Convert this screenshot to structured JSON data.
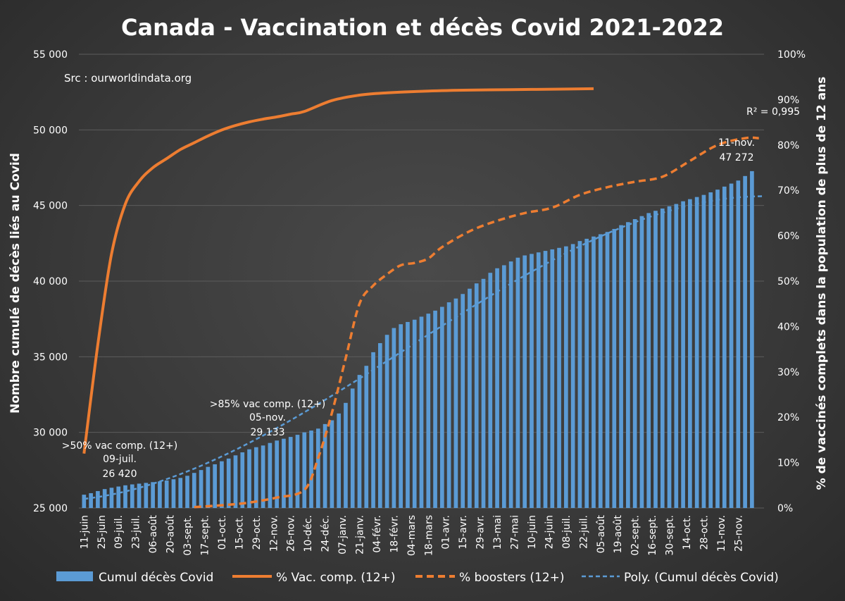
{
  "chart_data": {
    "type": "bar",
    "title": "Canada - Vaccination et décès Covid 2021-2022",
    "source": "Src : ourworldindata.org",
    "ylabel_left": "Nombre cumulé de décès liés au Covid",
    "ylabel_right": "% de vaccinés complets dans  la population de plus de 12 ans",
    "ylim_left": [
      25000,
      55000
    ],
    "ylim_right": [
      0,
      100
    ],
    "yticks_left": [
      "25 000",
      "30 000",
      "35 000",
      "40 000",
      "45 000",
      "50 000",
      "55 000"
    ],
    "yticks_right": [
      "0%",
      "10%",
      "20%",
      "30%",
      "40%",
      "50%",
      "60%",
      "70%",
      "80%",
      "90%",
      "100%"
    ],
    "x_labels": [
      "11-juin",
      "25-juin",
      "09-juil.",
      "23-juil.",
      "06-août",
      "20-août",
      "03-sept.",
      "17-sept.",
      "01-oct.",
      "15-oct.",
      "29-oct.",
      "12-nov.",
      "26-nov.",
      "10-déc.",
      "24-déc.",
      "07-janv.",
      "21-janv.",
      "04-févr.",
      "18-févr.",
      "04-mars",
      "18-mars",
      "01-avr.",
      "15-avr.",
      "29-avr.",
      "13-mai",
      "27-mai",
      "10-juin",
      "24-juin",
      "08-juil.",
      "22-juil.",
      "05-août",
      "19-août",
      "02-sept.",
      "16-sept.",
      "30-sept.",
      "14-oct.",
      "28-oct.",
      "11-nov.",
      "25-nov."
    ],
    "grid": true,
    "legend_position": "bottom",
    "series": [
      {
        "name": "Cumul décès Covid",
        "type": "bar",
        "axis": "left",
        "color": "#5b9bd5",
        "values": [
          25880,
          25980,
          26120,
          26250,
          26340,
          26420,
          26500,
          26560,
          26610,
          26660,
          26710,
          26760,
          26820,
          26900,
          26990,
          27130,
          27320,
          27510,
          27720,
          27890,
          28090,
          28270,
          28480,
          28680,
          28880,
          29020,
          29133,
          29300,
          29460,
          29580,
          29700,
          29840,
          30000,
          30120,
          30250,
          30550,
          30800,
          31250,
          31950,
          32900,
          33800,
          34400,
          35300,
          35900,
          36450,
          36900,
          37150,
          37300,
          37450,
          37650,
          37850,
          38050,
          38300,
          38600,
          38850,
          39150,
          39500,
          39850,
          40150,
          40550,
          40850,
          41050,
          41300,
          41550,
          41700,
          41800,
          41900,
          42000,
          42100,
          42200,
          42300,
          42450,
          42650,
          42800,
          42950,
          43100,
          43250,
          43450,
          43700,
          43900,
          44100,
          44300,
          44500,
          44650,
          44800,
          44950,
          45100,
          45280,
          45420,
          45560,
          45700,
          45870,
          46050,
          46250,
          46450,
          46650,
          46950,
          47272
        ]
      },
      {
        "name": "% Vac. comp. (12+)",
        "type": "line",
        "axis": "right",
        "color": "#ed7d31",
        "x_index": [
          0,
          2,
          4,
          6,
          8,
          10,
          12,
          14,
          16,
          18,
          20,
          22,
          24,
          26,
          28,
          30,
          32,
          36,
          40,
          44,
          50,
          56,
          62,
          68,
          74
        ],
        "values": [
          12,
          36,
          56,
          67,
          72,
          75,
          77,
          79,
          80.5,
          82,
          83.3,
          84.3,
          85.1,
          85.7,
          86.2,
          86.8,
          87.4,
          89.8,
          91,
          91.5,
          91.9,
          92.1,
          92.2,
          92.3,
          92.4
        ]
      },
      {
        "name": "% boosters (12+)",
        "type": "line",
        "axis": "right",
        "color": "#ed7d31",
        "dashed": true,
        "x_index": [
          16,
          20,
          24,
          28,
          32,
          34,
          36,
          38,
          40,
          42,
          44,
          46,
          48,
          50,
          52,
          56,
          60,
          64,
          68,
          72,
          76,
          80,
          84,
          88,
          92,
          96,
          98
        ],
        "values": [
          0.2,
          0.6,
          1.2,
          2.3,
          4,
          11,
          21,
          33,
          45,
          49,
          51.5,
          53.5,
          54,
          55,
          57.5,
          61,
          63.3,
          65,
          66.2,
          69,
          70.7,
          71.9,
          73,
          76.5,
          80,
          81.5,
          81.5
        ]
      },
      {
        "name": "Poly. (Cumul décès Covid)",
        "type": "trend",
        "axis": "left",
        "color": "#5b9bd5",
        "dashed": true,
        "coeffs": [
          25600,
          5.3,
          5.1,
          -0.0363
        ]
      }
    ],
    "annotations": [
      {
        "lines": [
          ">50% vac comp. (12+)",
          "09-juil.",
          "26 420"
        ]
      },
      {
        "lines": [
          ">85% vac comp. (12+)",
          "05-nov.",
          "29 133"
        ]
      },
      {
        "lines": [
          "11-nov.",
          "47 272"
        ]
      },
      {
        "lines": [
          "R² = 0,995"
        ]
      }
    ]
  }
}
